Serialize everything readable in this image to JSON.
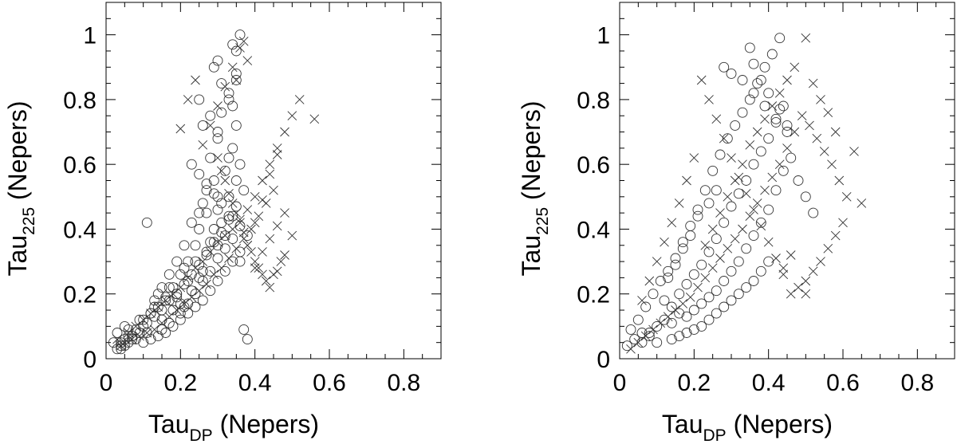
{
  "chart_data": [
    {
      "type": "scatter",
      "xlabel": {
        "base": "Tau",
        "sub": "DP",
        "unit": "(Nepers)"
      },
      "ylabel": {
        "base": "Tau",
        "sub": "225",
        "unit": "(Nepers)"
      },
      "xlim": [
        0,
        0.9
      ],
      "ylim": [
        0,
        1.1
      ],
      "x_ticks": [
        "0",
        "0.2",
        "0.4",
        "0.6",
        "0.8"
      ],
      "y_ticks": [
        "0",
        "0.2",
        "0.4",
        "0.6",
        "0.8",
        "1"
      ],
      "marker_color": "#333333",
      "series": [
        {
          "marker": "circle",
          "x": [
            0.02,
            0.03,
            0.04,
            0.05,
            0.06,
            0.07,
            0.05,
            0.04,
            0.06,
            0.08,
            0.09,
            0.1,
            0.12,
            0.11,
            0.13,
            0.15,
            0.14,
            0.16,
            0.18,
            0.17,
            0.19,
            0.2,
            0.22,
            0.21,
            0.23,
            0.24,
            0.25,
            0.27,
            0.26,
            0.28,
            0.29,
            0.3,
            0.31,
            0.32,
            0.3,
            0.33,
            0.34,
            0.35,
            0.36,
            0.34,
            0.35,
            0.33,
            0.31,
            0.29,
            0.28,
            0.3,
            0.32,
            0.35,
            0.36,
            0.35,
            0.34,
            0.33,
            0.3,
            0.27,
            0.25,
            0.24,
            0.22,
            0.2,
            0.18,
            0.16,
            0.14,
            0.12,
            0.1,
            0.08,
            0.06,
            0.04,
            0.03,
            0.05,
            0.07,
            0.09,
            0.11,
            0.13,
            0.15,
            0.17,
            0.19,
            0.21,
            0.23,
            0.25,
            0.27,
            0.29,
            0.31,
            0.33,
            0.35,
            0.37,
            0.38,
            0.36,
            0.34,
            0.32,
            0.3,
            0.28,
            0.26,
            0.24,
            0.22,
            0.2,
            0.18,
            0.16,
            0.14,
            0.12,
            0.1,
            0.11,
            0.28,
            0.3,
            0.31,
            0.33,
            0.35,
            0.29,
            0.27,
            0.26,
            0.25,
            0.23,
            0.21,
            0.19,
            0.17,
            0.15,
            0.13,
            0.2,
            0.22,
            0.24,
            0.26,
            0.28,
            0.3,
            0.32,
            0.34,
            0.36,
            0.38,
            0.33,
            0.31,
            0.29,
            0.27,
            0.25,
            0.23,
            0.21,
            0.19,
            0.17,
            0.15,
            0.25,
            0.26,
            0.3,
            0.34,
            0.36,
            0.37
          ],
          "y": [
            0.05,
            0.08,
            0.04,
            0.06,
            0.05,
            0.07,
            0.1,
            0.03,
            0.09,
            0.06,
            0.12,
            0.1,
            0.14,
            0.08,
            0.16,
            0.12,
            0.2,
            0.18,
            0.15,
            0.22,
            0.2,
            0.17,
            0.24,
            0.28,
            0.21,
            0.3,
            0.25,
            0.33,
            0.27,
            0.36,
            0.4,
            0.35,
            0.42,
            0.38,
            0.46,
            0.5,
            0.44,
            0.55,
            0.6,
            0.65,
            0.72,
            0.8,
            0.85,
            0.9,
            0.75,
            0.68,
            0.58,
            0.95,
            1.0,
            0.88,
            0.78,
            0.62,
            0.5,
            0.45,
            0.4,
            0.35,
            0.3,
            0.26,
            0.22,
            0.19,
            0.16,
            0.14,
            0.12,
            0.09,
            0.07,
            0.05,
            0.03,
            0.04,
            0.06,
            0.08,
            0.11,
            0.13,
            0.15,
            0.18,
            0.2,
            0.23,
            0.26,
            0.29,
            0.32,
            0.36,
            0.39,
            0.43,
            0.47,
            0.52,
            0.38,
            0.33,
            0.3,
            0.27,
            0.24,
            0.21,
            0.18,
            0.16,
            0.14,
            0.12,
            0.1,
            0.08,
            0.07,
            0.06,
            0.05,
            0.42,
            0.62,
            0.7,
            0.76,
            0.82,
            0.86,
            0.55,
            0.52,
            0.48,
            0.45,
            0.42,
            0.35,
            0.3,
            0.26,
            0.22,
            0.18,
            0.14,
            0.17,
            0.2,
            0.24,
            0.27,
            0.31,
            0.34,
            0.37,
            0.41,
            0.06,
            0.44,
            0.48,
            0.51,
            0.54,
            0.57,
            0.6,
            0.16,
            0.19,
            0.11,
            0.09,
            0.8,
            0.72,
            0.92,
            0.97,
            0.3,
            0.09
          ]
        },
        {
          "marker": "x",
          "x": [
            0.03,
            0.05,
            0.06,
            0.08,
            0.1,
            0.12,
            0.14,
            0.16,
            0.18,
            0.2,
            0.22,
            0.24,
            0.26,
            0.28,
            0.3,
            0.32,
            0.34,
            0.36,
            0.38,
            0.4,
            0.42,
            0.44,
            0.46,
            0.48,
            0.5,
            0.52,
            0.56,
            0.45,
            0.43,
            0.41,
            0.39,
            0.37,
            0.35,
            0.33,
            0.31,
            0.29,
            0.27,
            0.25,
            0.23,
            0.21,
            0.19,
            0.17,
            0.15,
            0.13,
            0.11,
            0.09,
            0.07,
            0.04,
            0.24,
            0.22,
            0.2,
            0.3,
            0.32,
            0.34,
            0.36,
            0.38,
            0.4,
            0.42,
            0.44,
            0.46,
            0.48,
            0.5,
            0.47,
            0.45,
            0.43,
            0.41,
            0.39,
            0.37,
            0.35,
            0.33,
            0.31,
            0.26,
            0.28,
            0.3,
            0.32,
            0.34,
            0.36,
            0.38,
            0.4,
            0.42,
            0.44,
            0.46,
            0.37,
            0.35,
            0.38,
            0.4,
            0.42,
            0.44,
            0.46,
            0.48
          ],
          "y": [
            0.06,
            0.05,
            0.08,
            0.1,
            0.12,
            0.14,
            0.16,
            0.18,
            0.2,
            0.22,
            0.25,
            0.28,
            0.3,
            0.33,
            0.36,
            0.38,
            0.4,
            0.43,
            0.46,
            0.5,
            0.55,
            0.6,
            0.65,
            0.7,
            0.75,
            0.8,
            0.74,
            0.52,
            0.48,
            0.44,
            0.4,
            0.37,
            0.34,
            0.31,
            0.28,
            0.26,
            0.23,
            0.21,
            0.19,
            0.17,
            0.15,
            0.13,
            0.11,
            0.09,
            0.08,
            0.07,
            0.06,
            0.04,
            0.86,
            0.8,
            0.71,
            0.62,
            0.55,
            0.48,
            0.42,
            0.35,
            0.3,
            0.26,
            0.22,
            0.27,
            0.32,
            0.38,
            0.3,
            0.26,
            0.24,
            0.28,
            0.33,
            0.39,
            0.45,
            0.51,
            0.58,
            0.66,
            0.72,
            0.78,
            0.84,
            0.9,
            0.96,
            0.35,
            0.42,
            0.49,
            0.57,
            0.63,
            0.98,
            0.86,
            0.92,
            0.28,
            0.33,
            0.37,
            0.41,
            0.45
          ]
        }
      ]
    },
    {
      "type": "scatter",
      "xlabel": {
        "base": "Tau",
        "sub": "DP",
        "unit": "(Nepers)"
      },
      "ylabel": {
        "base": "Tau",
        "sub": "225",
        "unit": "(Nepers)"
      },
      "xlim": [
        0,
        0.9
      ],
      "ylim": [
        0,
        1.1
      ],
      "x_ticks": [
        "0",
        "0.2",
        "0.4",
        "0.6",
        "0.8"
      ],
      "y_ticks": [
        "0",
        "0.2",
        "0.4",
        "0.6",
        "0.8",
        "1"
      ],
      "marker_color": "#333333",
      "series": [
        {
          "marker": "circle",
          "x": [
            0.02,
            0.04,
            0.06,
            0.08,
            0.1,
            0.12,
            0.14,
            0.16,
            0.18,
            0.2,
            0.22,
            0.24,
            0.26,
            0.28,
            0.3,
            0.32,
            0.34,
            0.36,
            0.38,
            0.4,
            0.42,
            0.44,
            0.46,
            0.48,
            0.5,
            0.52,
            0.43,
            0.41,
            0.39,
            0.37,
            0.35,
            0.33,
            0.31,
            0.29,
            0.27,
            0.25,
            0.23,
            0.21,
            0.19,
            0.17,
            0.15,
            0.13,
            0.11,
            0.09,
            0.07,
            0.05,
            0.03,
            0.12,
            0.14,
            0.16,
            0.18,
            0.2,
            0.22,
            0.24,
            0.26,
            0.28,
            0.3,
            0.32,
            0.34,
            0.36,
            0.38,
            0.4,
            0.42,
            0.44,
            0.35,
            0.36,
            0.38,
            0.4,
            0.43,
            0.45,
            0.28,
            0.3,
            0.33,
            0.36,
            0.39,
            0.42,
            0.45,
            0.21,
            0.24,
            0.26,
            0.19,
            0.17,
            0.15,
            0.13,
            0.4,
            0.38,
            0.36,
            0.34,
            0.32,
            0.3,
            0.28,
            0.26,
            0.24,
            0.22,
            0.2,
            0.18,
            0.16,
            0.14,
            0.1,
            0.08,
            0.06
          ],
          "y": [
            0.04,
            0.06,
            0.05,
            0.08,
            0.1,
            0.12,
            0.11,
            0.14,
            0.13,
            0.15,
            0.17,
            0.19,
            0.21,
            0.24,
            0.27,
            0.3,
            0.34,
            0.38,
            0.42,
            0.46,
            0.52,
            0.58,
            0.62,
            0.55,
            0.5,
            0.45,
            0.99,
            0.94,
            0.9,
            0.85,
            0.8,
            0.76,
            0.72,
            0.68,
            0.63,
            0.58,
            0.52,
            0.46,
            0.41,
            0.36,
            0.31,
            0.27,
            0.24,
            0.2,
            0.16,
            0.12,
            0.09,
            0.18,
            0.16,
            0.2,
            0.23,
            0.26,
            0.29,
            0.33,
            0.37,
            0.42,
            0.47,
            0.51,
            0.55,
            0.6,
            0.64,
            0.68,
            0.73,
            0.78,
            0.96,
            0.91,
            0.86,
            0.82,
            0.77,
            0.72,
            0.9,
            0.88,
            0.86,
            0.82,
            0.78,
            0.74,
            0.7,
            0.44,
            0.48,
            0.52,
            0.38,
            0.34,
            0.29,
            0.25,
            0.3,
            0.27,
            0.24,
            0.22,
            0.2,
            0.18,
            0.16,
            0.14,
            0.12,
            0.1,
            0.09,
            0.08,
            0.07,
            0.06,
            0.05,
            0.07,
            0.08
          ]
        },
        {
          "marker": "x",
          "x": [
            0.03,
            0.05,
            0.07,
            0.09,
            0.11,
            0.13,
            0.15,
            0.17,
            0.19,
            0.21,
            0.23,
            0.25,
            0.27,
            0.29,
            0.31,
            0.33,
            0.35,
            0.37,
            0.39,
            0.41,
            0.43,
            0.45,
            0.47,
            0.49,
            0.51,
            0.53,
            0.55,
            0.57,
            0.59,
            0.61,
            0.63,
            0.65,
            0.6,
            0.58,
            0.56,
            0.54,
            0.52,
            0.5,
            0.48,
            0.46,
            0.44,
            0.42,
            0.4,
            0.38,
            0.36,
            0.34,
            0.32,
            0.3,
            0.28,
            0.26,
            0.24,
            0.22,
            0.2,
            0.18,
            0.16,
            0.14,
            0.12,
            0.1,
            0.08,
            0.06,
            0.5,
            0.52,
            0.54,
            0.56,
            0.58,
            0.47,
            0.45,
            0.43,
            0.41,
            0.39,
            0.37,
            0.35,
            0.33,
            0.31,
            0.29,
            0.27,
            0.25,
            0.23,
            0.46,
            0.44,
            0.5
          ],
          "y": [
            0.03,
            0.05,
            0.07,
            0.09,
            0.11,
            0.13,
            0.15,
            0.17,
            0.19,
            0.22,
            0.25,
            0.28,
            0.31,
            0.34,
            0.37,
            0.4,
            0.44,
            0.48,
            0.52,
            0.56,
            0.6,
            0.65,
            0.7,
            0.75,
            0.72,
            0.68,
            0.64,
            0.6,
            0.55,
            0.5,
            0.64,
            0.48,
            0.42,
            0.38,
            0.34,
            0.3,
            0.27,
            0.24,
            0.22,
            0.2,
            0.26,
            0.31,
            0.36,
            0.41,
            0.46,
            0.51,
            0.56,
            0.62,
            0.68,
            0.74,
            0.8,
            0.86,
            0.62,
            0.55,
            0.48,
            0.42,
            0.36,
            0.3,
            0.24,
            0.18,
            0.99,
            0.85,
            0.8,
            0.76,
            0.7,
            0.9,
            0.86,
            0.82,
            0.78,
            0.74,
            0.7,
            0.66,
            0.6,
            0.55,
            0.5,
            0.45,
            0.4,
            0.35,
            0.32,
            0.28,
            0.2
          ]
        }
      ]
    }
  ]
}
